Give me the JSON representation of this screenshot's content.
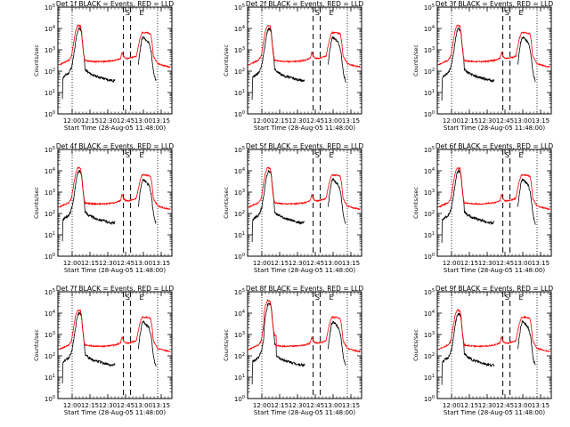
{
  "chart_data": [
    {
      "type": "line",
      "title": "Det 1f BLACK = Events, RED = LLD",
      "xlabel": "Start Time (28-Aug-05 11:48:00)",
      "ylabel": "Counts/sec",
      "yscale": "log",
      "ylim": [
        1,
        100000
      ],
      "xlim": [
        11.8,
        13.4
      ],
      "x_ticks": [
        "12:00",
        "12:15",
        "12:30",
        "12:45",
        "13:00",
        "13:15"
      ],
      "x_tick_values": [
        12.0,
        12.25,
        12.5,
        12.75,
        13.0,
        13.25
      ],
      "y_ticks": [
        "10^0",
        "10^1",
        "10^2",
        "10^3",
        "10^4",
        "10^5"
      ],
      "markers": [
        "S",
        "E"
      ],
      "series": []
    },
    {
      "type": "line",
      "title": "Det 2f BLACK = Events, RED = LLD",
      "xlabel": "Start Time (28-Aug-05 11:48:00)",
      "ylabel": "Counts/sec",
      "yscale": "log",
      "ylim": [
        1,
        100000
      ],
      "xlim": [
        11.8,
        13.4
      ],
      "x_ticks": [
        "12:00",
        "12:15",
        "12:30",
        "12:45",
        "13:00",
        "13:15"
      ],
      "x_tick_values": [
        12.0,
        12.25,
        12.5,
        12.75,
        13.0,
        13.25
      ],
      "y_ticks": [
        "10^0",
        "10^1",
        "10^2",
        "10^3",
        "10^4",
        "10^5"
      ],
      "markers": [
        "S",
        "E"
      ],
      "series": []
    },
    {
      "type": "line",
      "title": "Det 3f BLACK = Events, RED = LLD",
      "xlabel": "Start Time (28-Aug-05 11:48:00)",
      "ylabel": "Counts/sec",
      "yscale": "log",
      "ylim": [
        1,
        100000
      ],
      "xlim": [
        11.8,
        13.4
      ],
      "x_ticks": [
        "12:00",
        "12:15",
        "12:30",
        "12:45",
        "13:00",
        "13:15"
      ],
      "x_tick_values": [
        12.0,
        12.25,
        12.5,
        12.75,
        13.0,
        13.25
      ],
      "y_ticks": [
        "10^0",
        "10^1",
        "10^2",
        "10^3",
        "10^4",
        "10^5"
      ],
      "markers": [
        "S",
        "E"
      ],
      "series": []
    },
    {
      "type": "line",
      "title": "Det 4f BLACK = Events, RED = LLD",
      "xlabel": "Start Time (28-Aug-05 11:48:00)",
      "ylabel": "Counts/sec",
      "yscale": "log",
      "ylim": [
        1,
        100000
      ],
      "xlim": [
        11.8,
        13.4
      ],
      "x_ticks": [
        "12:00",
        "12:15",
        "12:30",
        "12:45",
        "13:00",
        "13:15"
      ],
      "x_tick_values": [
        12.0,
        12.25,
        12.5,
        12.75,
        13.0,
        13.25
      ],
      "y_ticks": [
        "10^0",
        "10^1",
        "10^2",
        "10^3",
        "10^4",
        "10^5"
      ],
      "markers": [
        "S",
        "E"
      ],
      "series": []
    },
    {
      "type": "line",
      "title": "Det 5f BLACK = Events, RED = LLD",
      "xlabel": "Start Time (28-Aug-05 11:48:00)",
      "ylabel": "Counts/sec",
      "yscale": "log",
      "ylim": [
        1,
        100000
      ],
      "xlim": [
        11.8,
        13.4
      ],
      "x_ticks": [
        "12:00",
        "12:15",
        "12:30",
        "12:45",
        "13:00",
        "13:15"
      ],
      "x_tick_values": [
        12.0,
        12.25,
        12.5,
        12.75,
        13.0,
        13.25
      ],
      "y_ticks": [
        "10^0",
        "10^1",
        "10^2",
        "10^3",
        "10^4",
        "10^5"
      ],
      "markers": [
        "S",
        "E"
      ],
      "series": []
    },
    {
      "type": "line",
      "title": "Det 6f BLACK = Events, RED = LLD",
      "xlabel": "Start Time (28-Aug-05 11:48:00)",
      "ylabel": "Counts/sec",
      "yscale": "log",
      "ylim": [
        1,
        100000
      ],
      "xlim": [
        11.8,
        13.4
      ],
      "x_ticks": [
        "12:00",
        "12:15",
        "12:30",
        "12:45",
        "13:00",
        "13:15"
      ],
      "x_tick_values": [
        12.0,
        12.25,
        12.5,
        12.75,
        13.0,
        13.25
      ],
      "y_ticks": [
        "10^0",
        "10^1",
        "10^2",
        "10^3",
        "10^4",
        "10^5"
      ],
      "markers": [
        "S",
        "E"
      ],
      "series": []
    },
    {
      "type": "line",
      "title": "Det 7f BLACK = Events, RED = LLD",
      "xlabel": "Start Time (28-Aug-05 11:48:00)",
      "ylabel": "Counts/sec",
      "yscale": "log",
      "ylim": [
        1,
        100000
      ],
      "xlim": [
        11.8,
        13.4
      ],
      "x_ticks": [
        "12:00",
        "12:15",
        "12:30",
        "12:45",
        "13:00",
        "13:15"
      ],
      "x_tick_values": [
        12.0,
        12.25,
        12.5,
        12.75,
        13.0,
        13.25
      ],
      "y_ticks": [
        "10^0",
        "10^1",
        "10^2",
        "10^3",
        "10^4",
        "10^5"
      ],
      "markers": [
        "S",
        "E"
      ],
      "series": []
    },
    {
      "type": "line",
      "title": "Det 8f BLACK = Events, RED = LLD",
      "xlabel": "Start Time (28-Aug-05 11:48:00)",
      "ylabel": "Counts/sec",
      "yscale": "log",
      "ylim": [
        1,
        100000
      ],
      "xlim": [
        11.8,
        13.4
      ],
      "x_ticks": [
        "12:00",
        "12:15",
        "12:30",
        "12:45",
        "13:00",
        "13:15"
      ],
      "x_tick_values": [
        12.0,
        12.25,
        12.5,
        12.75,
        13.0,
        13.25
      ],
      "y_ticks": [
        "10^0",
        "10^1",
        "10^2",
        "10^3",
        "10^4",
        "10^5"
      ],
      "markers": [
        "S",
        "E"
      ],
      "series": []
    },
    {
      "type": "line",
      "title": "Det 9f BLACK = Events, RED = LLD",
      "xlabel": "Start Time (28-Aug-05 11:48:00)",
      "ylabel": "Counts/sec",
      "yscale": "log",
      "ylim": [
        1,
        100000
      ],
      "xlim": [
        11.8,
        13.4
      ],
      "x_ticks": [
        "12:00",
        "12:15",
        "12:30",
        "12:45",
        "13:00",
        "13:15"
      ],
      "x_tick_values": [
        12.0,
        12.25,
        12.5,
        12.75,
        13.0,
        13.25
      ],
      "y_ticks": [
        "10^0",
        "10^1",
        "10^2",
        "10^3",
        "10^4",
        "10^5"
      ],
      "markers": [
        "S",
        "E"
      ],
      "series": []
    }
  ],
  "profiles": {
    "events": [
      [
        11.82,
        0
      ],
      [
        11.86,
        0
      ],
      [
        11.87,
        1.7
      ],
      [
        11.9,
        1.8
      ],
      [
        11.95,
        1.9
      ],
      [
        11.98,
        2.1
      ],
      [
        12.0,
        2.3
      ],
      [
        12.03,
        2.9
      ],
      [
        12.06,
        3.6
      ],
      [
        12.08,
        3.9
      ],
      [
        12.1,
        4.0
      ],
      [
        12.13,
        3.9
      ],
      [
        12.15,
        3.2
      ],
      [
        12.17,
        2.6
      ],
      [
        12.18,
        2.1
      ],
      [
        12.22,
        1.95
      ],
      [
        12.3,
        1.8
      ],
      [
        12.4,
        1.7
      ],
      [
        12.5,
        1.6
      ],
      [
        12.58,
        1.55
      ],
      [
        12.6,
        1.6
      ]
    ],
    "events2": [
      [
        12.93,
        2.3
      ],
      [
        12.95,
        2.9
      ],
      [
        12.98,
        3.5
      ],
      [
        13.0,
        3.6
      ],
      [
        13.03,
        3.5
      ],
      [
        13.08,
        3.3
      ],
      [
        13.11,
        2.9
      ],
      [
        13.13,
        2.3
      ],
      [
        13.15,
        1.8
      ],
      [
        13.18,
        1.5
      ]
    ],
    "lld": [
      [
        11.82,
        2.3
      ],
      [
        11.88,
        2.4
      ],
      [
        11.95,
        2.5
      ],
      [
        11.99,
        2.7
      ],
      [
        12.02,
        3.3
      ],
      [
        12.05,
        3.9
      ],
      [
        12.08,
        4.15
      ],
      [
        12.12,
        4.1
      ],
      [
        12.14,
        3.5
      ],
      [
        12.16,
        2.8
      ],
      [
        12.18,
        2.5
      ],
      [
        12.3,
        2.45
      ],
      [
        12.45,
        2.45
      ],
      [
        12.6,
        2.5
      ],
      [
        12.68,
        2.6
      ],
      [
        12.7,
        2.9
      ],
      [
        12.72,
        2.7
      ],
      [
        12.75,
        2.6
      ],
      [
        12.8,
        2.6
      ],
      [
        12.85,
        2.65
      ],
      [
        12.9,
        2.7
      ],
      [
        12.95,
        3.5
      ],
      [
        12.98,
        3.8
      ],
      [
        13.05,
        3.8
      ],
      [
        13.1,
        3.75
      ],
      [
        13.12,
        3.4
      ],
      [
        13.14,
        2.7
      ],
      [
        13.2,
        2.35
      ],
      [
        13.3,
        2.25
      ],
      [
        13.38,
        2.2
      ]
    ]
  }
}
